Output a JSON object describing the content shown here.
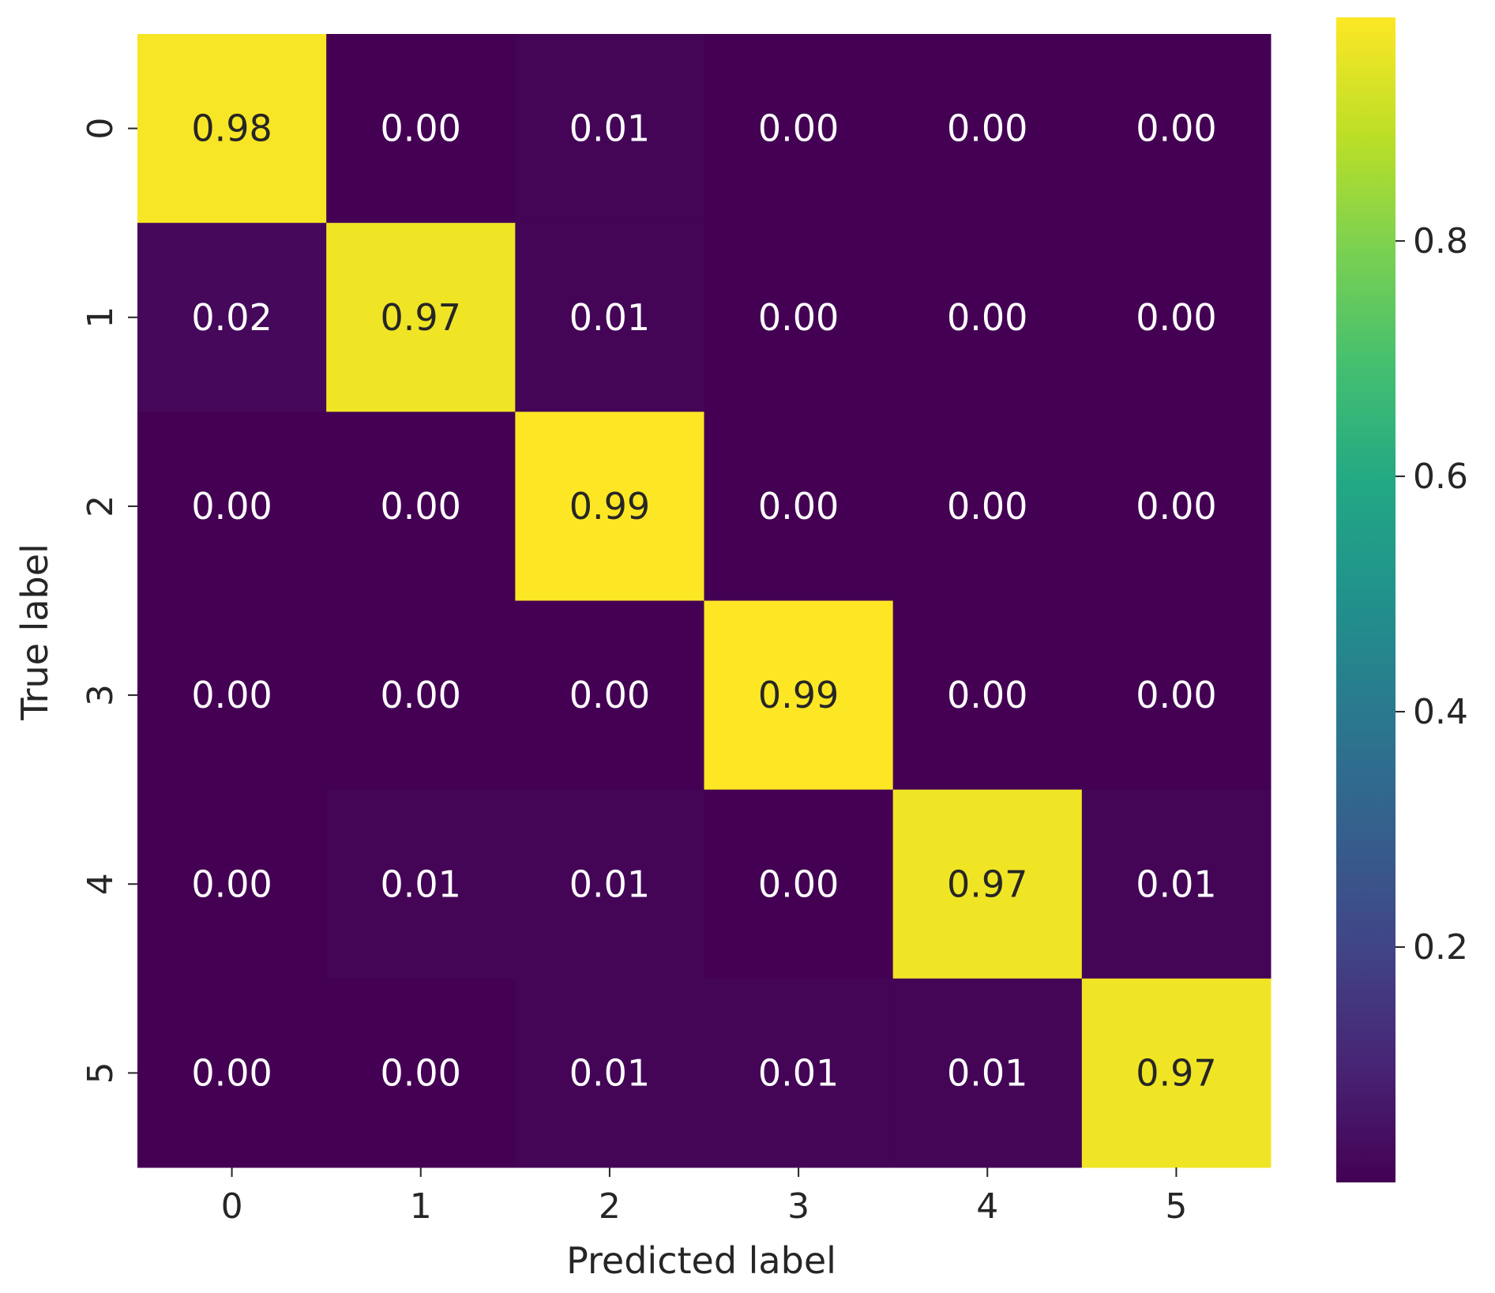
{
  "chart_data": {
    "type": "heatmap",
    "xlabel": "Predicted label",
    "ylabel": "True label",
    "x_categories": [
      "0",
      "1",
      "2",
      "3",
      "4",
      "5"
    ],
    "y_categories": [
      "0",
      "1",
      "2",
      "3",
      "4",
      "5"
    ],
    "values": [
      [
        0.98,
        0.0,
        0.01,
        0.0,
        0.0,
        0.0
      ],
      [
        0.02,
        0.97,
        0.01,
        0.0,
        0.0,
        0.0
      ],
      [
        0.0,
        0.0,
        0.99,
        0.0,
        0.0,
        0.0
      ],
      [
        0.0,
        0.0,
        0.0,
        0.99,
        0.0,
        0.0
      ],
      [
        0.0,
        0.01,
        0.01,
        0.0,
        0.97,
        0.01
      ],
      [
        0.0,
        0.0,
        0.01,
        0.01,
        0.01,
        0.97
      ]
    ],
    "annotation_format": "0.00",
    "colormap": "viridis",
    "colorbar": {
      "range": [
        0.0,
        0.99
      ],
      "ticks": [
        0.2,
        0.4,
        0.6,
        0.8
      ],
      "tick_labels": [
        "0.2",
        "0.4",
        "0.6",
        "0.8"
      ]
    },
    "grid": false
  }
}
